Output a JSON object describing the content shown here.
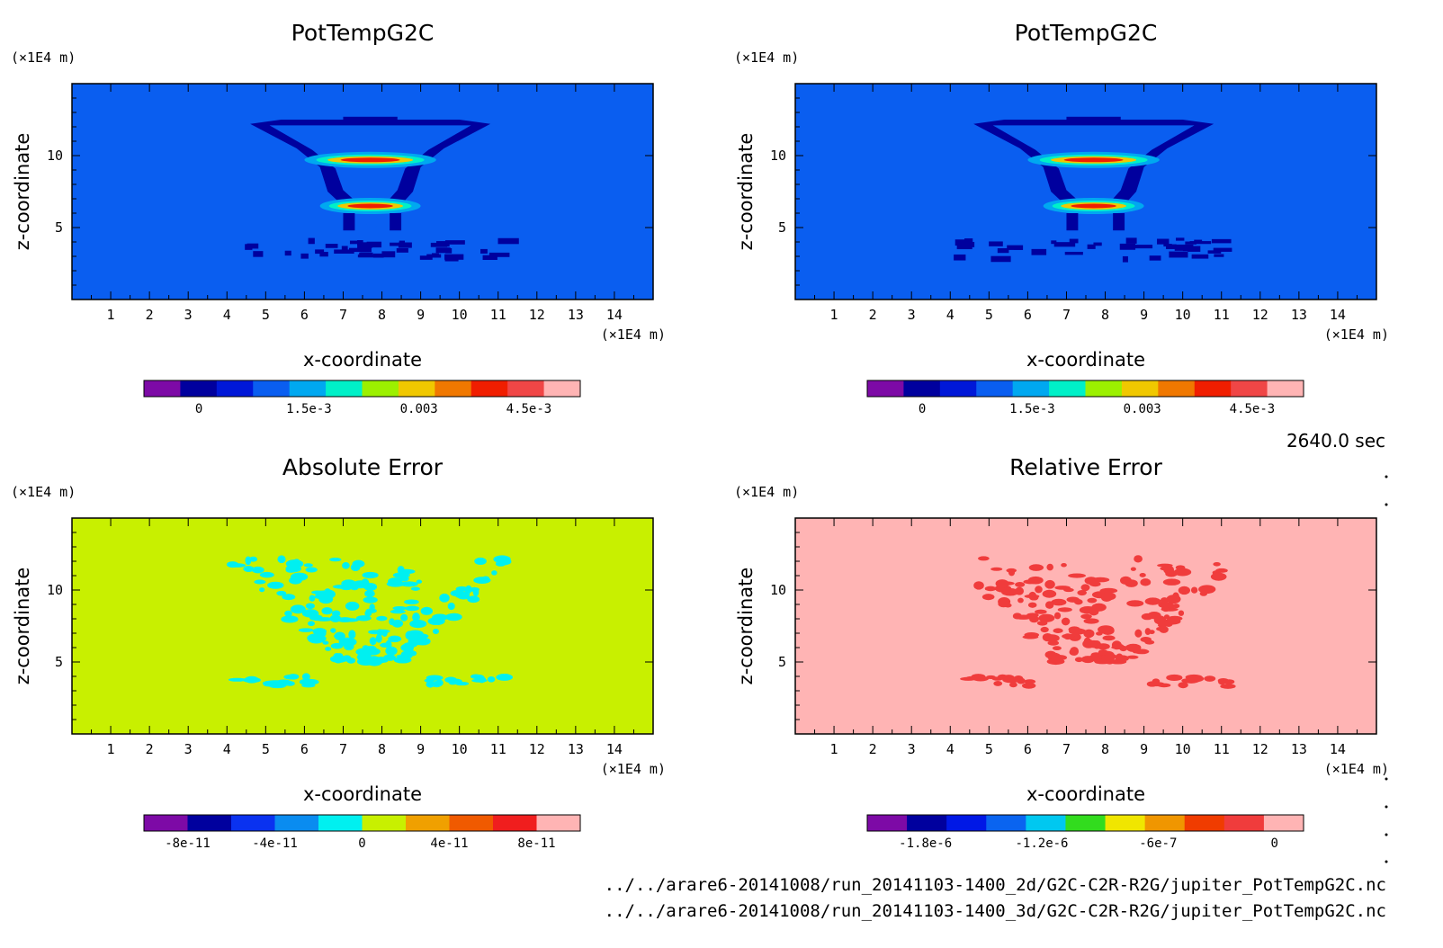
{
  "chart_data": [
    {
      "type": "heatmap",
      "title": "PotTempG2C",
      "xlabel": "x-coordinate",
      "ylabel": "z-coordinate",
      "x_unit": "(×1E4 m)",
      "y_unit": "(×1E4 m)",
      "xlim": [
        0,
        15
      ],
      "ylim": [
        0,
        15
      ],
      "x_ticks": [
        "1",
        "2",
        "3",
        "4",
        "5",
        "6",
        "7",
        "8",
        "9",
        "10",
        "11",
        "12",
        "13",
        "14"
      ],
      "y_ticks": [
        "5",
        "10"
      ],
      "background_value": 0.0009,
      "features": [
        {
          "kind": "hot-band",
          "x_center": 7.7,
          "z": 9.7,
          "half_width": 1.7,
          "peak": 0.0052
        },
        {
          "kind": "hot-band",
          "x_center": 7.7,
          "z": 6.5,
          "half_width": 1.3,
          "peak": 0.0052
        },
        {
          "kind": "cold-funnel-outline",
          "value": 0
        },
        {
          "kind": "cold-patches-low",
          "z": 3.4,
          "value": 0
        }
      ],
      "colorbar": {
        "colors": [
          "#7d0aa6",
          "#00009e",
          "#0018d8",
          "#0a5ef0",
          "#00a8f0",
          "#00f0c8",
          "#9cf000",
          "#f0c800",
          "#f07800",
          "#f01e00",
          "#f04646",
          "#ffb4b4"
        ],
        "tick_labels": [
          "0",
          "1.5e-3",
          "0.003",
          "4.5e-3"
        ],
        "tick_values": [
          0,
          0.0015,
          0.003,
          0.0045
        ],
        "range": [
          -0.00075,
          0.0052
        ]
      }
    },
    {
      "type": "heatmap",
      "title": "PotTempG2C",
      "xlabel": "x-coordinate",
      "ylabel": "z-coordinate",
      "x_unit": "(×1E4 m)",
      "y_unit": "(×1E4 m)",
      "xlim": [
        0,
        15
      ],
      "ylim": [
        0,
        15
      ],
      "x_ticks": [
        "1",
        "2",
        "3",
        "4",
        "5",
        "6",
        "7",
        "8",
        "9",
        "10",
        "11",
        "12",
        "13",
        "14"
      ],
      "y_ticks": [
        "5",
        "10"
      ],
      "background_value": 0.0009,
      "features": [
        {
          "kind": "hot-band",
          "x_center": 7.7,
          "z": 9.7,
          "half_width": 1.7,
          "peak": 0.0052
        },
        {
          "kind": "hot-band",
          "x_center": 7.7,
          "z": 6.5,
          "half_width": 1.3,
          "peak": 0.0052
        },
        {
          "kind": "cold-funnel-outline",
          "value": 0
        },
        {
          "kind": "cold-patches-low",
          "z": 3.4,
          "value": 0
        }
      ],
      "colorbar": {
        "colors": [
          "#7d0aa6",
          "#00009e",
          "#0018d8",
          "#0a5ef0",
          "#00a8f0",
          "#00f0c8",
          "#9cf000",
          "#f0c800",
          "#f07800",
          "#f01e00",
          "#f04646",
          "#ffb4b4"
        ],
        "tick_labels": [
          "0",
          "1.5e-3",
          "0.003",
          "4.5e-3"
        ],
        "tick_values": [
          0,
          0.0015,
          0.003,
          0.0045
        ],
        "range": [
          -0.00075,
          0.0052
        ]
      }
    },
    {
      "type": "heatmap",
      "title": "Absolute Error",
      "xlabel": "x-coordinate",
      "ylabel": "z-coordinate",
      "x_unit": "(×1E4 m)",
      "y_unit": "(×1E4 m)",
      "xlim": [
        0,
        15
      ],
      "ylim": [
        0,
        15
      ],
      "x_ticks": [
        "1",
        "2",
        "3",
        "4",
        "5",
        "6",
        "7",
        "8",
        "9",
        "10",
        "11",
        "12",
        "13",
        "14"
      ],
      "y_ticks": [
        "5",
        "10"
      ],
      "background_value": 1e-11,
      "patch_value": -1e-11,
      "colorbar": {
        "colors": [
          "#7d0aa6",
          "#00009e",
          "#0a32f0",
          "#0a8cf0",
          "#00f0f0",
          "#c8f000",
          "#f0a000",
          "#f05a00",
          "#f01e1e",
          "#ffb4b4"
        ],
        "tick_labels": [
          "-8e-11",
          "-4e-11",
          "0",
          "4e-11",
          "8e-11"
        ],
        "tick_values": [
          -8e-11,
          -4e-11,
          0,
          4e-11,
          8e-11
        ],
        "range": [
          -1e-10,
          1e-10
        ]
      }
    },
    {
      "type": "heatmap",
      "title": "Relative Error",
      "xlabel": "x-coordinate",
      "ylabel": "z-coordinate",
      "x_unit": "(×1E4 m)",
      "y_unit": "(×1E4 m)",
      "xlim": [
        0,
        15
      ],
      "ylim": [
        0,
        15
      ],
      "x_ticks": [
        "1",
        "2",
        "3",
        "4",
        "5",
        "6",
        "7",
        "8",
        "9",
        "10",
        "11",
        "12",
        "13",
        "14"
      ],
      "y_ticks": [
        "5",
        "10"
      ],
      "background_value": 0.0,
      "patch_value": -1.5e-07,
      "colorbar": {
        "colors": [
          "#7d0aa6",
          "#00009e",
          "#0018e6",
          "#0a64f0",
          "#00c8f0",
          "#32dc1e",
          "#f0e600",
          "#f09600",
          "#f03c00",
          "#f03c3c",
          "#ffb4b4"
        ],
        "tick_labels": [
          "-1.8e-6",
          "-1.2e-6",
          "-6e-7",
          "0"
        ],
        "tick_values": [
          -1.8e-06,
          -1.2e-06,
          -6e-07,
          0
        ],
        "range": [
          -2.1e-06,
          1.5e-07
        ]
      }
    }
  ],
  "time_label": "2640.0 sec",
  "files": [
    "../../arare6-20141008/run_20141103-1400_2d/G2C-C2R-R2G/jupiter_PotTempG2C.nc",
    "../../arare6-20141008/run_20141103-1400_3d/G2C-C2R-R2G/jupiter_PotTempG2C.nc"
  ]
}
